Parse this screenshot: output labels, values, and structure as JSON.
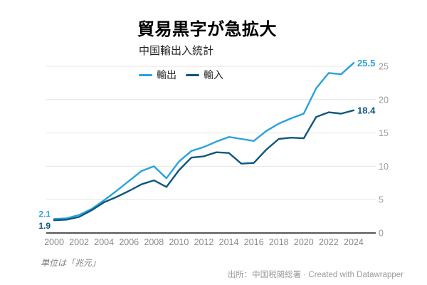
{
  "header": {
    "title": "貿易黒字が急拡大",
    "subtitle": "中国輸出入統計"
  },
  "legend": {
    "items": [
      {
        "label": "輸出",
        "color": "#29a2dc"
      },
      {
        "label": "輸入",
        "color": "#0e577f"
      }
    ]
  },
  "footer": {
    "note": "単位は「兆元」",
    "attribution": "出所：中国税関総署 · Created with Datawrapper"
  },
  "colors": {
    "exports_line": "#29a2dc",
    "imports_line": "#0e577f",
    "gridline": "#e4e4e4",
    "axis": "#3f3f3f",
    "y_tick_label": "#9d9d9d",
    "x_tick_label": "#8a8a8a"
  },
  "chart_data": {
    "type": "line",
    "title": "貿易黒字が急拡大",
    "subtitle": "中国輸出入統計",
    "unit": "兆元",
    "x": [
      2000,
      2001,
      2002,
      2003,
      2004,
      2005,
      2006,
      2007,
      2008,
      2009,
      2010,
      2011,
      2012,
      2013,
      2014,
      2015,
      2016,
      2017,
      2018,
      2019,
      2020,
      2021,
      2022,
      2023,
      2024
    ],
    "series": [
      {
        "id": "exports",
        "name": "輸出",
        "color": "#29a2dc",
        "values": [
          2.1,
          2.2,
          2.7,
          3.6,
          4.9,
          6.3,
          7.8,
          9.3,
          10.0,
          8.2,
          10.7,
          12.3,
          12.9,
          13.7,
          14.4,
          14.1,
          13.8,
          15.3,
          16.4,
          17.2,
          17.9,
          21.7,
          24.0,
          23.8,
          25.5
        ],
        "first_value_label": "2.1",
        "last_value_label": "25.5"
      },
      {
        "id": "imports",
        "name": "輸入",
        "color": "#0e577f",
        "values": [
          1.9,
          2.0,
          2.4,
          3.4,
          4.6,
          5.4,
          6.3,
          7.3,
          7.9,
          6.9,
          9.4,
          11.3,
          11.5,
          12.1,
          12.0,
          10.4,
          10.5,
          12.5,
          14.1,
          14.3,
          14.2,
          17.4,
          18.1,
          17.9,
          18.4
        ],
        "first_value_label": "1.9",
        "last_value_label": "18.4"
      }
    ],
    "xticks": [
      2000,
      2002,
      2004,
      2006,
      2008,
      2010,
      2012,
      2014,
      2016,
      2018,
      2020,
      2022,
      2024
    ],
    "yticks": [
      0,
      5,
      10,
      15,
      20,
      25
    ],
    "xlim": [
      2000,
      2024
    ],
    "ylim": [
      0,
      26
    ],
    "grid": true,
    "legend_position": "top-left"
  }
}
